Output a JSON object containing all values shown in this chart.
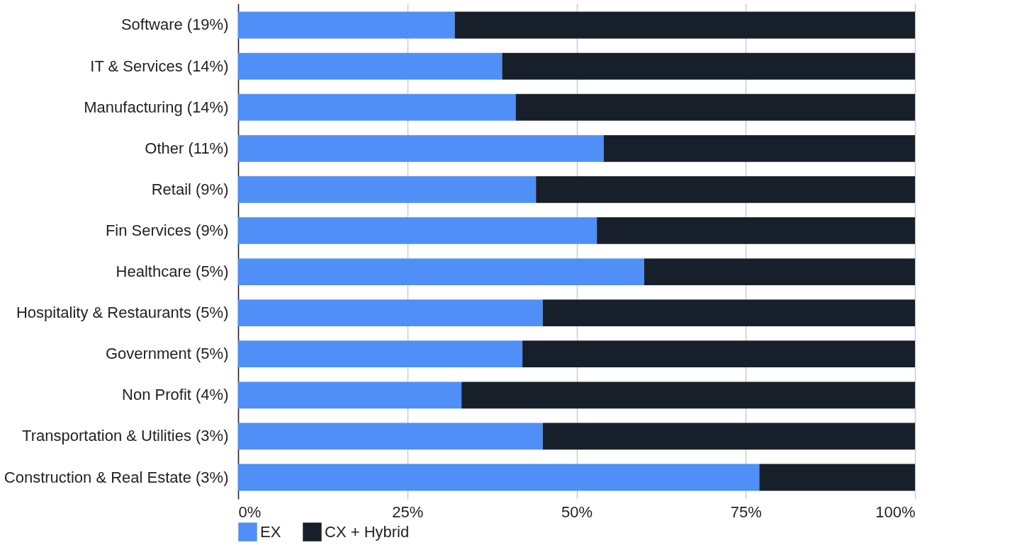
{
  "chart_data": {
    "type": "bar",
    "orientation": "horizontal",
    "stacked": true,
    "categories": [
      "Software (19%)",
      "IT & Services (14%)",
      "Manufacturing (14%)",
      "Other (11%)",
      "Retail (9%)",
      "Fin Services (9%)",
      "Healthcare (5%)",
      "Hospitality & Restaurants (5%)",
      "Government (5%)",
      "Non Profit (4%)",
      "Transportation & Utilities (3%)",
      "Construction & Real Estate (3%)"
    ],
    "series": [
      {
        "name": "EX",
        "color": "#4f8ff7",
        "values": [
          32,
          39,
          41,
          54,
          44,
          53,
          60,
          45,
          42,
          33,
          45,
          77
        ]
      },
      {
        "name": "CX + Hybrid",
        "color": "#17202a",
        "values": [
          68,
          61,
          59,
          46,
          56,
          47,
          40,
          55,
          58,
          67,
          55,
          23
        ]
      }
    ],
    "xlim": [
      0,
      100
    ],
    "xticks": [
      {
        "value": 0,
        "label": "0%"
      },
      {
        "value": 25,
        "label": "25%"
      },
      {
        "value": 50,
        "label": "50%"
      },
      {
        "value": 75,
        "label": "75%"
      },
      {
        "value": 100,
        "label": "100%"
      }
    ],
    "grid": "x",
    "legend": "bottom"
  }
}
